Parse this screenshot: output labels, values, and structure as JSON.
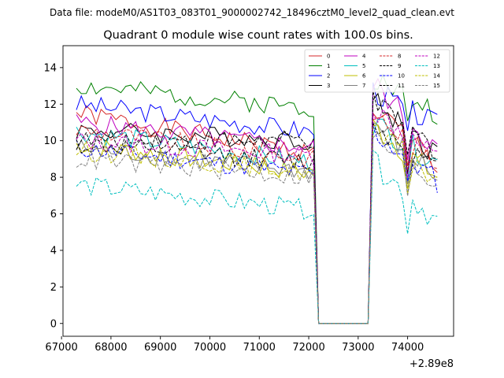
{
  "suptitle": "Data file: modeM0/AS1T03_083T01_9000002742_18496cztM0_level2_quad_clean.evt",
  "chart_data": {
    "type": "line",
    "title": "Quadrant 0 module wise count rates with 100.0s bins.",
    "xlabel": "",
    "ylabel": "",
    "x_offset_label": "+2.89e8",
    "xlim": [
      67030,
      74930
    ],
    "ylim": [
      -0.7,
      15.2
    ],
    "xticks": [
      67000,
      68000,
      69000,
      70000,
      71000,
      72000,
      73000,
      74000
    ],
    "xtick_labels": [
      "67000",
      "68000",
      "69000",
      "70000",
      "71000",
      "72000",
      "73000",
      "74000"
    ],
    "yticks": [
      0,
      2,
      4,
      6,
      8,
      10,
      12,
      14
    ],
    "ytick_labels": [
      "0",
      "2",
      "4",
      "6",
      "8",
      "10",
      "12",
      "14"
    ],
    "legend": {
      "location": "top-right",
      "ncol": 4
    },
    "time_grid": {
      "x_start": 67300,
      "step": 100,
      "gap_start": 72200,
      "gap_end": 73200,
      "x_end": 74600
    },
    "series": [
      {
        "name": "0",
        "color": "#d62728",
        "style": "solid",
        "pre_start": 11.5,
        "pre_end": 9.3,
        "post_start": 11.8,
        "post_end": 8.7
      },
      {
        "name": "1",
        "color": "#008000",
        "style": "solid",
        "pre_start": 13.0,
        "pre_end": 11.8,
        "post_start": 13.5,
        "post_end": 11.5
      },
      {
        "name": "2",
        "color": "#0000ff",
        "style": "solid",
        "pre_start": 12.0,
        "pre_end": 10.5,
        "post_start": 12.8,
        "post_end": 10.8
      },
      {
        "name": "3",
        "color": "#000000",
        "style": "solid",
        "pre_start": 10.6,
        "pre_end": 10.0,
        "post_start": 12.2,
        "post_end": 9.2
      },
      {
        "name": "4",
        "color": "#bf00bf",
        "style": "solid",
        "pre_start": 11.0,
        "pre_end": 9.6,
        "post_start": 13.2,
        "post_end": 9.5
      },
      {
        "name": "5",
        "color": "#00bfbf",
        "style": "solid",
        "pre_start": 10.5,
        "pre_end": 8.8,
        "post_start": 11.0,
        "post_end": 8.8
      },
      {
        "name": "6",
        "color": "#bfbf00",
        "style": "solid",
        "pre_start": 9.8,
        "pre_end": 8.2,
        "post_start": 10.8,
        "post_end": 8.0
      },
      {
        "name": "7",
        "color": "#808080",
        "style": "solid",
        "pre_start": 9.6,
        "pre_end": 8.3,
        "post_start": 11.0,
        "post_end": 8.0
      },
      {
        "name": "8",
        "color": "#d62728",
        "style": "dashed",
        "pre_start": 10.6,
        "pre_end": 9.0,
        "post_start": 11.5,
        "post_end": 8.8
      },
      {
        "name": "9",
        "color": "#000000",
        "style": "dashed",
        "pre_start": 10.0,
        "pre_end": 10.0,
        "post_start": 12.0,
        "post_end": 9.5
      },
      {
        "name": "10",
        "color": "#0000ff",
        "style": "dashed",
        "pre_start": 9.6,
        "pre_end": 8.2,
        "post_start": 10.5,
        "post_end": 7.8
      },
      {
        "name": "11",
        "color": "#000000",
        "style": "dashed",
        "pre_start": 9.8,
        "pre_end": 8.8,
        "post_start": 11.0,
        "post_end": 8.3
      },
      {
        "name": "12",
        "color": "#bf00bf",
        "style": "dashed",
        "pre_start": 10.0,
        "pre_end": 9.2,
        "post_start": 11.8,
        "post_end": 9.0
      },
      {
        "name": "13",
        "color": "#00bfbf",
        "style": "dashed",
        "pre_start": 7.6,
        "pre_end": 6.2,
        "post_start": 8.8,
        "post_end": 5.6
      },
      {
        "name": "14",
        "color": "#bfbf00",
        "style": "dashed",
        "pre_start": 9.5,
        "pre_end": 8.3,
        "post_start": 10.5,
        "post_end": 7.9
      },
      {
        "name": "15",
        "color": "#808080",
        "style": "dashed",
        "pre_start": 9.0,
        "pre_end": 8.0,
        "post_start": 10.2,
        "post_end": 7.6
      }
    ]
  }
}
